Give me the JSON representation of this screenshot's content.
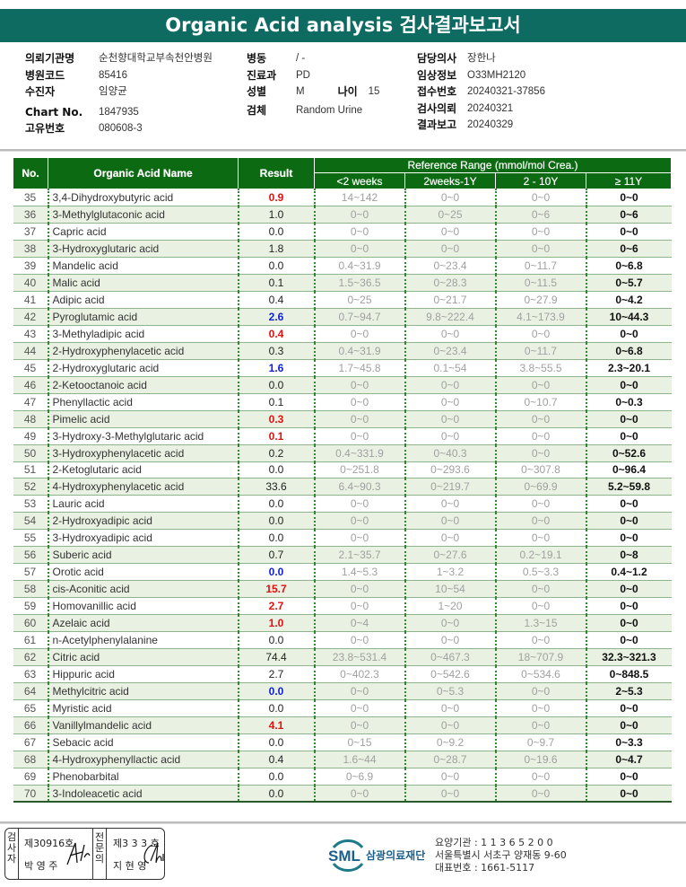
{
  "title": "Organic Acid analysis 검사결과보고서",
  "patient": {
    "col1": [
      {
        "label": "의뢰기관명",
        "value": "순천향대학교부속천안병원"
      },
      {
        "label": "병원코드",
        "value": "85416"
      },
      {
        "label": "수진자",
        "value": "임양균"
      },
      {
        "label": "Chart No.",
        "value": "1847935"
      },
      {
        "label": "고유번호",
        "value": "080608-3"
      }
    ],
    "col2": [
      {
        "label": "병동",
        "value": "/ -"
      },
      {
        "label": "진료과",
        "value": "PD"
      },
      {
        "label": "성별",
        "value": "M"
      },
      {
        "label": "검체",
        "value": "Random Urine"
      }
    ],
    "age_label": "나이",
    "age_value": "15",
    "col3": [
      {
        "label": "담당의사",
        "value": "장한나"
      },
      {
        "label": "임상정보",
        "value": "O33MH2120"
      },
      {
        "label": "접수번호",
        "value": "20240321-37856"
      },
      {
        "label": "검사의뢰",
        "value": "20240321"
      },
      {
        "label": "결과보고",
        "value": "20240329"
      }
    ]
  },
  "table": {
    "headers": {
      "no": "No.",
      "name": "Organic Acid Name",
      "result": "Result",
      "reference": "Reference Range (mmol/mol Crea.)",
      "ranges": [
        "<2 weeks",
        "2weeks-1Y",
        "2 - 10Y",
        "≥ 11Y"
      ]
    },
    "rows": [
      {
        "no": "35",
        "name": "3,4-Dihydroxybutyric acid",
        "result": "0.9",
        "flag": "high",
        "ref": [
          "14~142",
          "0~0",
          "0~0",
          "0~0"
        ]
      },
      {
        "no": "36",
        "name": "3-Methylglutaconic acid",
        "result": "1.0",
        "flag": "",
        "ref": [
          "0~0",
          "0~25",
          "0~6",
          "0~6"
        ]
      },
      {
        "no": "37",
        "name": "Capric acid",
        "result": "0.0",
        "flag": "",
        "ref": [
          "0~0",
          "0~0",
          "0~0",
          "0~0"
        ]
      },
      {
        "no": "38",
        "name": "3-Hydroxyglutaric acid",
        "result": "1.8",
        "flag": "",
        "ref": [
          "0~0",
          "0~0",
          "0~0",
          "0~6"
        ]
      },
      {
        "no": "39",
        "name": "Mandelic acid",
        "result": "0.0",
        "flag": "",
        "ref": [
          "0.4~31.9",
          "0~23.4",
          "0~11.7",
          "0~6.8"
        ]
      },
      {
        "no": "40",
        "name": "Malic acid",
        "result": "0.1",
        "flag": "",
        "ref": [
          "1.5~36.5",
          "0~28.3",
          "0~11.5",
          "0~5.7"
        ]
      },
      {
        "no": "41",
        "name": "Adipic acid",
        "result": "0.4",
        "flag": "",
        "ref": [
          "0~25",
          "0~21.7",
          "0~27.9",
          "0~4.2"
        ]
      },
      {
        "no": "42",
        "name": "Pyroglutamic acid",
        "result": "2.6",
        "flag": "low",
        "ref": [
          "0.7~94.7",
          "9.8~222.4",
          "4.1~173.9",
          "10~44.3"
        ]
      },
      {
        "no": "43",
        "name": "3-Methyladipic acid",
        "result": "0.4",
        "flag": "high",
        "ref": [
          "0~0",
          "0~0",
          "0~0",
          "0~0"
        ]
      },
      {
        "no": "44",
        "name": "2-Hydroxyphenylacetic acid",
        "result": "0.3",
        "flag": "",
        "ref": [
          "0.4~31.9",
          "0~23.4",
          "0~11.7",
          "0~6.8"
        ]
      },
      {
        "no": "45",
        "name": "2-Hydroxyglutaric acid",
        "result": "1.6",
        "flag": "low",
        "ref": [
          "1.7~45.8",
          "0.1~54",
          "3.8~55.5",
          "2.3~20.1"
        ]
      },
      {
        "no": "46",
        "name": "2-Ketooctanoic acid",
        "result": "0.0",
        "flag": "",
        "ref": [
          "0~0",
          "0~0",
          "0~0",
          "0~0"
        ]
      },
      {
        "no": "47",
        "name": "Phenyllactic acid",
        "result": "0.1",
        "flag": "",
        "ref": [
          "0~0",
          "0~0",
          "0~10.7",
          "0~0.3"
        ]
      },
      {
        "no": "48",
        "name": "Pimelic acid",
        "result": "0.3",
        "flag": "high",
        "ref": [
          "0~0",
          "0~0",
          "0~0",
          "0~0"
        ]
      },
      {
        "no": "49",
        "name": "3-Hydroxy-3-Methylglutaric acid",
        "result": "0.1",
        "flag": "high",
        "ref": [
          "0~0",
          "0~0",
          "0~0",
          "0~0"
        ]
      },
      {
        "no": "50",
        "name": "3-Hydroxyphenylacetic acid",
        "result": "0.2",
        "flag": "",
        "ref": [
          "0.4~331.9",
          "0~40.3",
          "0~0",
          "0~52.6"
        ]
      },
      {
        "no": "51",
        "name": "2-Ketoglutaric acid",
        "result": "0.0",
        "flag": "",
        "ref": [
          "0~251.8",
          "0~293.6",
          "0~307.8",
          "0~96.4"
        ]
      },
      {
        "no": "52",
        "name": "4-Hydroxyphenylacetic acid",
        "result": "33.6",
        "flag": "",
        "ref": [
          "6.4~90.3",
          "0~219.7",
          "0~69.9",
          "5.2~59.8"
        ]
      },
      {
        "no": "53",
        "name": "Lauric acid",
        "result": "0.0",
        "flag": "",
        "ref": [
          "0~0",
          "0~0",
          "0~0",
          "0~0"
        ]
      },
      {
        "no": "54",
        "name": "2-Hydroxyadipic acid",
        "result": "0.0",
        "flag": "",
        "ref": [
          "0~0",
          "0~0",
          "0~0",
          "0~0"
        ]
      },
      {
        "no": "55",
        "name": "3-Hydroxyadipic acid",
        "result": "0.0",
        "flag": "",
        "ref": [
          "0~0",
          "0~0",
          "0~0",
          "0~0"
        ]
      },
      {
        "no": "56",
        "name": "Suberic acid",
        "result": "0.7",
        "flag": "",
        "ref": [
          "2.1~35.7",
          "0~27.6",
          "0.2~19.1",
          "0~8"
        ]
      },
      {
        "no": "57",
        "name": "Orotic acid",
        "result": "0.0",
        "flag": "low",
        "ref": [
          "1.4~5.3",
          "1~3.2",
          "0.5~3.3",
          "0.4~1.2"
        ]
      },
      {
        "no": "58",
        "name": "cis-Aconitic acid",
        "result": "15.7",
        "flag": "high",
        "ref": [
          "0~0",
          "10~54",
          "0~0",
          "0~0"
        ]
      },
      {
        "no": "59",
        "name": "Homovanillic acid",
        "result": "2.7",
        "flag": "high",
        "ref": [
          "0~0",
          "1~20",
          "0~0",
          "0~0"
        ]
      },
      {
        "no": "60",
        "name": "Azelaic acid",
        "result": "1.0",
        "flag": "high",
        "ref": [
          "0~4",
          "0~0",
          "1.3~15",
          "0~0"
        ]
      },
      {
        "no": "61",
        "name": "n-Acetylphenylalanine",
        "result": "0.0",
        "flag": "",
        "ref": [
          "0~0",
          "0~0",
          "0~0",
          "0~0"
        ]
      },
      {
        "no": "62",
        "name": "Citric acid",
        "result": "74.4",
        "flag": "",
        "ref": [
          "23.8~531.4",
          "0~467.3",
          "18~707.9",
          "32.3~321.3"
        ]
      },
      {
        "no": "63",
        "name": "Hippuric acid",
        "result": "2.7",
        "flag": "",
        "ref": [
          "0~402.3",
          "0~542.6",
          "0~534.6",
          "0~848.5"
        ]
      },
      {
        "no": "64",
        "name": "Methylcitric acid",
        "result": "0.0",
        "flag": "low",
        "ref": [
          "0~0",
          "0~5.3",
          "0~0",
          "2~5.3"
        ]
      },
      {
        "no": "65",
        "name": "Myristic acid",
        "result": "0.0",
        "flag": "",
        "ref": [
          "0~0",
          "0~0",
          "0~0",
          "0~0"
        ]
      },
      {
        "no": "66",
        "name": "Vanillylmandelic acid",
        "result": "4.1",
        "flag": "high",
        "ref": [
          "0~0",
          "0~0",
          "0~0",
          "0~0"
        ]
      },
      {
        "no": "67",
        "name": "Sebacic acid",
        "result": "0.0",
        "flag": "",
        "ref": [
          "0~15",
          "0~9.2",
          "0~9.7",
          "0~3.3"
        ]
      },
      {
        "no": "68",
        "name": "4-Hydroxyphenyllactic acid",
        "result": "0.4",
        "flag": "",
        "ref": [
          "1.6~44",
          "0~28.7",
          "0~19.6",
          "0~4.7"
        ]
      },
      {
        "no": "69",
        "name": "Phenobarbital",
        "result": "0.0",
        "flag": "",
        "ref": [
          "0~6.9",
          "0~0",
          "0~0",
          "0~0"
        ]
      },
      {
        "no": "70",
        "name": "3-Indoleacetic acid",
        "result": "0.0",
        "flag": "",
        "ref": [
          "0~0",
          "0~0",
          "0~0",
          "0~0"
        ]
      }
    ]
  },
  "footer": {
    "examiner_label": "검사자",
    "examiner_no": "제30916호",
    "examiner_name": "박 영 주",
    "specialist_label": "전문의",
    "specialist_no": "제3 3 3 호",
    "specialist_name": "지 현 영",
    "logo_text": "SML",
    "org_name": "삼광의료재단",
    "address_lines": [
      "요양기관 : 1 1 3 6 5 2 0 0",
      "서울특별시 서초구 양재동 9-60",
      "대표번호 : 1661-5117"
    ]
  },
  "colors": {
    "title_bg": "#0e6b62",
    "header_bg": "#0c6a12",
    "high": "#e01010",
    "low": "#1020d8",
    "row_alt": "#e9f2e2"
  }
}
